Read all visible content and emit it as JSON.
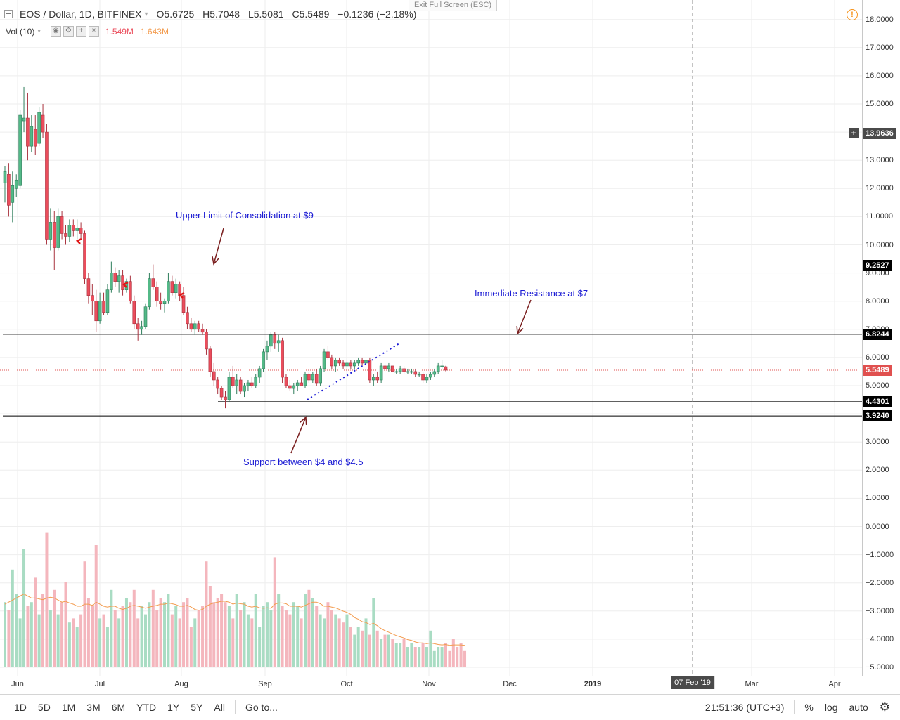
{
  "header": {
    "exit_fullscreen": "Exit Full Screen (ESC)",
    "symbol": "EOS / Dollar, 1D, BITFINEX",
    "open": "O5.6725",
    "high": "H5.7048",
    "low": "L5.5081",
    "close": "C5.5489",
    "change": "−0.1236 (−2.18%)",
    "volume_label": "Vol (10)",
    "vol_value_1": "1.549M",
    "vol_value_2": "1.643M",
    "alert_icon": "alert-clock-icon"
  },
  "colors": {
    "up": "#53b987",
    "down": "#eb4d5c",
    "vol_up": "#a9dcc3",
    "vol_down": "#f4b6bd",
    "vol_ma": "#f39c4f",
    "annotation": "#1a1ad4",
    "arrow": "#7a1f1f",
    "last_price": "#e0504f"
  },
  "annotations": {
    "upper_limit": "Upper Limit of Consolidation at $9",
    "resistance": "Immediate Resistance at $7",
    "support": "Support between $4 and $4.5"
  },
  "price_axis": {
    "ticks": [
      "18.0000",
      "17.0000",
      "16.0000",
      "15.0000",
      "14.0000",
      "13.0000",
      "12.0000",
      "11.0000",
      "10.0000",
      "9.0000",
      "8.0000",
      "7.0000",
      "6.0000",
      "5.0000",
      "4.0000",
      "3.0000",
      "2.0000",
      "1.0000",
      "0.0000",
      "−1.0000",
      "−2.0000",
      "−3.0000",
      "−4.0000",
      "−5.0000"
    ],
    "tags": {
      "crosshair": "13.9636",
      "upper": "9.2527",
      "resistance": "6.8244",
      "last": "5.5489",
      "support_hi": "4.4301",
      "support_lo": "3.9240"
    }
  },
  "time_axis": {
    "labels": [
      "Jun",
      "Jul",
      "Aug",
      "Sep",
      "Oct",
      "Nov",
      "Dec",
      "2019",
      "Mar",
      "Apr"
    ],
    "crosshair_date": "07 Feb '19"
  },
  "toolbar": {
    "ranges": [
      "1D",
      "5D",
      "1M",
      "3M",
      "6M",
      "YTD",
      "1Y",
      "5Y",
      "All"
    ],
    "goto": "Go to...",
    "clock": "21:51:36 (UTC+3)",
    "percent": "%",
    "log": "log",
    "auto": "auto",
    "settings_icon": "gear-icon"
  },
  "chart_data": {
    "type": "candlestick",
    "title": "EOS / Dollar, 1D, BITFINEX",
    "ylim": [
      -5.3,
      18.5
    ],
    "levels": [
      9.2527,
      6.8244,
      4.4301,
      3.924
    ],
    "last_price": 5.5489,
    "crosshair_price": 13.9636,
    "candles": [
      {
        "o": 12.2,
        "h": 12.8,
        "l": 11.5,
        "c": 12.6
      },
      {
        "o": 12.5,
        "h": 12.9,
        "l": 11.0,
        "c": 11.4
      },
      {
        "o": 11.5,
        "h": 12.6,
        "l": 10.8,
        "c": 12.1
      },
      {
        "o": 12.0,
        "h": 12.5,
        "l": 11.7,
        "c": 12.3
      },
      {
        "o": 12.1,
        "h": 14.8,
        "l": 12.0,
        "c": 14.6
      },
      {
        "o": 14.4,
        "h": 15.6,
        "l": 14.0,
        "c": 14.5
      },
      {
        "o": 14.5,
        "h": 15.4,
        "l": 13.0,
        "c": 13.5
      },
      {
        "o": 13.5,
        "h": 14.6,
        "l": 13.3,
        "c": 14.2
      },
      {
        "o": 14.1,
        "h": 14.6,
        "l": 13.2,
        "c": 13.5
      },
      {
        "o": 13.6,
        "h": 14.9,
        "l": 13.5,
        "c": 14.7
      },
      {
        "o": 14.6,
        "h": 15.0,
        "l": 13.8,
        "c": 14.0
      },
      {
        "o": 14.0,
        "h": 14.3,
        "l": 10.0,
        "c": 10.2
      },
      {
        "o": 10.2,
        "h": 11.3,
        "l": 9.8,
        "c": 10.8
      },
      {
        "o": 10.8,
        "h": 11.2,
        "l": 9.1,
        "c": 9.9
      },
      {
        "o": 9.9,
        "h": 11.3,
        "l": 9.8,
        "c": 11.0
      },
      {
        "o": 11.0,
        "h": 11.2,
        "l": 10.2,
        "c": 10.4
      },
      {
        "o": 10.4,
        "h": 10.7,
        "l": 10.0,
        "c": 10.3
      },
      {
        "o": 10.3,
        "h": 10.9,
        "l": 10.1,
        "c": 10.7
      },
      {
        "o": 10.7,
        "h": 10.9,
        "l": 10.3,
        "c": 10.5
      },
      {
        "o": 10.5,
        "h": 10.9,
        "l": 10.2,
        "c": 10.6
      },
      {
        "o": 10.6,
        "h": 10.8,
        "l": 10.2,
        "c": 10.4
      },
      {
        "o": 10.4,
        "h": 10.5,
        "l": 8.6,
        "c": 8.8
      },
      {
        "o": 8.8,
        "h": 9.0,
        "l": 7.9,
        "c": 8.2
      },
      {
        "o": 8.2,
        "h": 8.6,
        "l": 7.5,
        "c": 8.0
      },
      {
        "o": 8.0,
        "h": 8.4,
        "l": 6.9,
        "c": 7.3
      },
      {
        "o": 7.3,
        "h": 8.3,
        "l": 7.2,
        "c": 8.0
      },
      {
        "o": 8.0,
        "h": 8.3,
        "l": 7.5,
        "c": 7.6
      },
      {
        "o": 7.6,
        "h": 8.6,
        "l": 7.5,
        "c": 8.4
      },
      {
        "o": 8.4,
        "h": 9.4,
        "l": 8.3,
        "c": 9.0
      },
      {
        "o": 9.0,
        "h": 9.2,
        "l": 8.5,
        "c": 8.7
      },
      {
        "o": 8.7,
        "h": 9.1,
        "l": 8.3,
        "c": 8.9
      },
      {
        "o": 8.9,
        "h": 9.1,
        "l": 8.2,
        "c": 8.4
      },
      {
        "o": 8.4,
        "h": 8.8,
        "l": 8.3,
        "c": 8.7
      },
      {
        "o": 8.7,
        "h": 8.9,
        "l": 7.9,
        "c": 8.0
      },
      {
        "o": 8.0,
        "h": 8.2,
        "l": 7.0,
        "c": 7.2
      },
      {
        "o": 7.2,
        "h": 7.4,
        "l": 6.6,
        "c": 7.0
      },
      {
        "o": 7.0,
        "h": 7.3,
        "l": 6.8,
        "c": 7.1
      },
      {
        "o": 7.1,
        "h": 7.9,
        "l": 7.0,
        "c": 7.8
      },
      {
        "o": 7.8,
        "h": 9.0,
        "l": 7.7,
        "c": 8.8
      },
      {
        "o": 8.8,
        "h": 9.3,
        "l": 8.4,
        "c": 8.5
      },
      {
        "o": 8.5,
        "h": 8.7,
        "l": 7.8,
        "c": 8.0
      },
      {
        "o": 8.0,
        "h": 8.3,
        "l": 7.7,
        "c": 7.9
      },
      {
        "o": 7.9,
        "h": 8.1,
        "l": 7.6,
        "c": 8.0
      },
      {
        "o": 8.0,
        "h": 9.0,
        "l": 7.9,
        "c": 8.7
      },
      {
        "o": 8.7,
        "h": 8.9,
        "l": 8.2,
        "c": 8.3
      },
      {
        "o": 8.3,
        "h": 8.8,
        "l": 8.1,
        "c": 8.6
      },
      {
        "o": 8.6,
        "h": 8.7,
        "l": 8.0,
        "c": 8.2
      },
      {
        "o": 8.2,
        "h": 8.5,
        "l": 7.5,
        "c": 7.6
      },
      {
        "o": 7.6,
        "h": 7.8,
        "l": 7.0,
        "c": 7.2
      },
      {
        "o": 7.2,
        "h": 7.4,
        "l": 6.9,
        "c": 7.0
      },
      {
        "o": 7.0,
        "h": 7.3,
        "l": 6.8,
        "c": 7.2
      },
      {
        "o": 7.2,
        "h": 7.3,
        "l": 6.9,
        "c": 7.0
      },
      {
        "o": 7.0,
        "h": 7.2,
        "l": 6.8,
        "c": 6.9
      },
      {
        "o": 6.9,
        "h": 7.0,
        "l": 6.1,
        "c": 6.3
      },
      {
        "o": 6.3,
        "h": 6.4,
        "l": 5.3,
        "c": 5.5
      },
      {
        "o": 5.5,
        "h": 5.8,
        "l": 5.0,
        "c": 5.2
      },
      {
        "o": 5.2,
        "h": 5.3,
        "l": 4.7,
        "c": 4.9
      },
      {
        "o": 4.9,
        "h": 5.0,
        "l": 4.5,
        "c": 4.6
      },
      {
        "o": 4.6,
        "h": 4.8,
        "l": 4.2,
        "c": 4.5
      },
      {
        "o": 4.5,
        "h": 5.5,
        "l": 4.4,
        "c": 5.3
      },
      {
        "o": 5.3,
        "h": 5.7,
        "l": 4.9,
        "c": 5.0
      },
      {
        "o": 5.0,
        "h": 5.4,
        "l": 4.7,
        "c": 5.2
      },
      {
        "o": 5.2,
        "h": 5.3,
        "l": 4.7,
        "c": 4.8
      },
      {
        "o": 4.8,
        "h": 5.1,
        "l": 4.6,
        "c": 5.0
      },
      {
        "o": 5.0,
        "h": 5.2,
        "l": 4.8,
        "c": 5.1
      },
      {
        "o": 5.1,
        "h": 5.3,
        "l": 4.9,
        "c": 5.0
      },
      {
        "o": 5.0,
        "h": 5.4,
        "l": 4.9,
        "c": 5.3
      },
      {
        "o": 5.3,
        "h": 5.7,
        "l": 5.1,
        "c": 5.6
      },
      {
        "o": 5.6,
        "h": 6.3,
        "l": 5.5,
        "c": 6.2
      },
      {
        "o": 6.2,
        "h": 6.6,
        "l": 5.9,
        "c": 6.4
      },
      {
        "o": 6.4,
        "h": 6.9,
        "l": 6.2,
        "c": 6.8
      },
      {
        "o": 6.8,
        "h": 6.9,
        "l": 6.3,
        "c": 6.5
      },
      {
        "o": 6.5,
        "h": 6.8,
        "l": 6.2,
        "c": 6.6
      },
      {
        "o": 6.6,
        "h": 6.7,
        "l": 5.1,
        "c": 5.3
      },
      {
        "o": 5.3,
        "h": 5.4,
        "l": 4.9,
        "c": 5.0
      },
      {
        "o": 5.0,
        "h": 5.2,
        "l": 4.8,
        "c": 4.9
      },
      {
        "o": 4.9,
        "h": 5.1,
        "l": 4.7,
        "c": 5.0
      },
      {
        "o": 5.0,
        "h": 5.2,
        "l": 4.8,
        "c": 5.1
      },
      {
        "o": 5.1,
        "h": 5.3,
        "l": 5.0,
        "c": 5.0
      },
      {
        "o": 5.0,
        "h": 5.5,
        "l": 4.9,
        "c": 5.4
      },
      {
        "o": 5.4,
        "h": 5.5,
        "l": 5.1,
        "c": 5.2
      },
      {
        "o": 5.2,
        "h": 5.5,
        "l": 5.1,
        "c": 5.4
      },
      {
        "o": 5.4,
        "h": 5.6,
        "l": 5.0,
        "c": 5.1
      },
      {
        "o": 5.1,
        "h": 5.7,
        "l": 5.0,
        "c": 5.6
      },
      {
        "o": 5.6,
        "h": 6.3,
        "l": 5.5,
        "c": 6.2
      },
      {
        "o": 6.2,
        "h": 6.4,
        "l": 5.9,
        "c": 6.0
      },
      {
        "o": 6.0,
        "h": 6.1,
        "l": 5.6,
        "c": 5.7
      },
      {
        "o": 5.7,
        "h": 6.0,
        "l": 5.5,
        "c": 5.9
      },
      {
        "o": 5.9,
        "h": 6.0,
        "l": 5.7,
        "c": 5.8
      },
      {
        "o": 5.8,
        "h": 5.9,
        "l": 5.6,
        "c": 5.7
      },
      {
        "o": 5.7,
        "h": 5.9,
        "l": 5.6,
        "c": 5.8
      },
      {
        "o": 5.8,
        "h": 5.9,
        "l": 5.6,
        "c": 5.7
      },
      {
        "o": 5.7,
        "h": 5.9,
        "l": 5.6,
        "c": 5.8
      },
      {
        "o": 5.8,
        "h": 6.0,
        "l": 5.7,
        "c": 5.9
      },
      {
        "o": 5.9,
        "h": 6.0,
        "l": 5.7,
        "c": 5.8
      },
      {
        "o": 5.8,
        "h": 6.0,
        "l": 5.7,
        "c": 5.9
      },
      {
        "o": 5.9,
        "h": 6.0,
        "l": 5.1,
        "c": 5.2
      },
      {
        "o": 5.2,
        "h": 5.4,
        "l": 5.0,
        "c": 5.3
      },
      {
        "o": 5.3,
        "h": 5.5,
        "l": 5.1,
        "c": 5.2
      },
      {
        "o": 5.2,
        "h": 5.8,
        "l": 5.1,
        "c": 5.7
      },
      {
        "o": 5.7,
        "h": 5.8,
        "l": 5.5,
        "c": 5.6
      },
      {
        "o": 5.6,
        "h": 5.8,
        "l": 5.5,
        "c": 5.7
      },
      {
        "o": 5.7,
        "h": 5.7,
        "l": 5.5,
        "c": 5.5
      },
      {
        "o": 5.5,
        "h": 5.6,
        "l": 5.4,
        "c": 5.5
      },
      {
        "o": 5.5,
        "h": 5.7,
        "l": 5.4,
        "c": 5.6
      },
      {
        "o": 5.6,
        "h": 5.7,
        "l": 5.4,
        "c": 5.5
      },
      {
        "o": 5.5,
        "h": 5.6,
        "l": 5.4,
        "c": 5.5
      },
      {
        "o": 5.5,
        "h": 5.6,
        "l": 5.4,
        "c": 5.5
      },
      {
        "o": 5.5,
        "h": 5.6,
        "l": 5.3,
        "c": 5.4
      },
      {
        "o": 5.4,
        "h": 5.5,
        "l": 5.3,
        "c": 5.4
      },
      {
        "o": 5.4,
        "h": 5.5,
        "l": 5.1,
        "c": 5.2
      },
      {
        "o": 5.2,
        "h": 5.4,
        "l": 5.1,
        "c": 5.3
      },
      {
        "o": 5.3,
        "h": 5.5,
        "l": 5.2,
        "c": 5.4
      },
      {
        "o": 5.4,
        "h": 5.6,
        "l": 5.3,
        "c": 5.5
      },
      {
        "o": 5.5,
        "h": 5.8,
        "l": 5.4,
        "c": 5.7
      },
      {
        "o": 5.7,
        "h": 5.9,
        "l": 5.6,
        "c": 5.7
      },
      {
        "o": 5.6725,
        "h": 5.7048,
        "l": 5.5081,
        "c": 5.5489
      }
    ],
    "volume": [
      1.6,
      1.4,
      2.4,
      1.8,
      1.2,
      2.9,
      1.5,
      1.6,
      2.2,
      1.3,
      1.8,
      3.3,
      1.4,
      1.9,
      1.3,
      1.6,
      2.1,
      1.1,
      1.2,
      1.0,
      1.3,
      2.6,
      1.7,
      1.5,
      3.0,
      1.2,
      1.3,
      1.0,
      1.9,
      1.4,
      1.2,
      1.5,
      1.7,
      1.6,
      1.9,
      1.2,
      1.5,
      1.3,
      1.6,
      1.9,
      1.4,
      1.7,
      1.6,
      1.8,
      1.3,
      1.5,
      1.2,
      1.6,
      1.7,
      1.0,
      1.2,
      1.4,
      1.5,
      2.6,
      2.0,
      1.6,
      1.7,
      1.8,
      1.6,
      1.5,
      1.2,
      1.8,
      1.4,
      1.6,
      1.3,
      1.2,
      1.8,
      1.0,
      1.5,
      1.6,
      1.4,
      2.7,
      1.8,
      1.5,
      1.4,
      1.3,
      1.6,
      1.5,
      1.2,
      1.8,
      1.9,
      1.7,
      1.5,
      1.3,
      1.2,
      1.6,
      1.4,
      1.3,
      1.2,
      1.1,
      1.3,
      1.0,
      0.8,
      1.0,
      0.9,
      1.2,
      0.8,
      1.7,
      0.9,
      0.7,
      0.8,
      0.8,
      0.7,
      0.6,
      0.6,
      0.7,
      0.5,
      0.6,
      0.5,
      0.5,
      0.6,
      0.5,
      0.9,
      0.4,
      0.5,
      0.5,
      0.6,
      0.4,
      0.7,
      0.5,
      0.6,
      0.4
    ],
    "volume_ma": [
      1.55,
      1.6,
      1.65,
      1.7,
      1.75,
      1.8,
      1.75,
      1.7,
      1.7,
      1.68,
      1.66,
      1.7,
      1.72,
      1.7,
      1.65,
      1.6,
      1.62,
      1.58,
      1.55,
      1.5,
      1.5,
      1.55,
      1.55,
      1.52,
      1.6,
      1.55,
      1.5,
      1.48,
      1.5,
      1.5,
      1.45,
      1.42,
      1.45,
      1.5,
      1.52,
      1.5,
      1.48,
      1.45,
      1.48,
      1.5,
      1.52,
      1.55,
      1.55,
      1.58,
      1.56,
      1.54,
      1.5,
      1.5,
      1.52,
      1.48,
      1.42,
      1.4,
      1.42,
      1.5,
      1.55,
      1.58,
      1.6,
      1.62,
      1.62,
      1.6,
      1.55,
      1.58,
      1.56,
      1.55,
      1.5,
      1.48,
      1.5,
      1.46,
      1.45,
      1.46,
      1.45,
      1.55,
      1.58,
      1.58,
      1.56,
      1.5,
      1.5,
      1.5,
      1.48,
      1.52,
      1.56,
      1.6,
      1.6,
      1.56,
      1.5,
      1.5,
      1.48,
      1.46,
      1.42,
      1.38,
      1.35,
      1.3,
      1.22,
      1.18,
      1.12,
      1.1,
      1.05,
      1.08,
      1.02,
      0.95,
      0.9,
      0.86,
      0.82,
      0.78,
      0.75,
      0.72,
      0.68,
      0.66,
      0.62,
      0.6,
      0.6,
      0.58,
      0.6,
      0.58,
      0.56,
      0.55,
      0.56,
      0.54,
      0.55,
      0.55,
      0.55,
      0.54
    ]
  }
}
